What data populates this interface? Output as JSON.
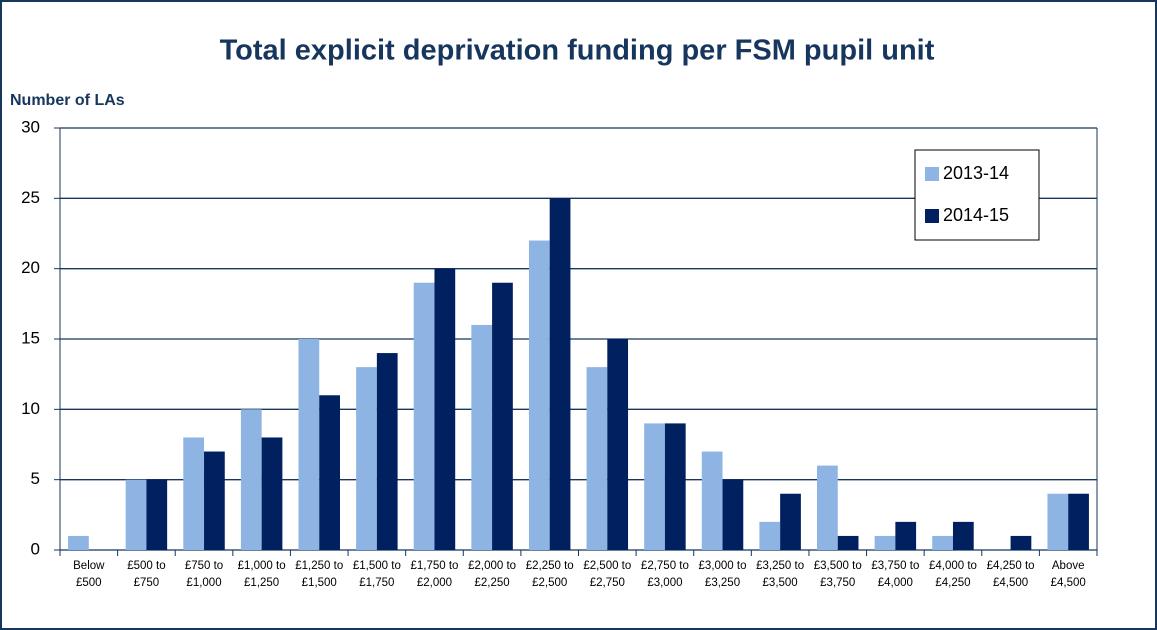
{
  "chart_data": {
    "type": "bar",
    "title": "Total explicit deprivation funding per FSM pupil unit",
    "y_label": "Number of LAs",
    "categories": [
      "Below £500",
      "£500 to £750",
      "£750 to £1,000",
      "£1,000 to £1,250",
      "£1,250 to £1,500",
      "£1,500 to £1,750",
      "£1,750 to £2,000",
      "£2,000 to £2,250",
      "£2,250 to £2,500",
      "£2,500 to £2,750",
      "£2,750 to £3,000",
      "£3,000 to £3,250",
      "£3,250 to £3,500",
      "£3,500 to £3,750",
      "£3,750 to £4,000",
      "£4,000 to £4,250",
      "£4,250 to £4,500",
      "Above £4,500"
    ],
    "series": [
      {
        "name": "2013-14",
        "color": "#8eb4e3",
        "values": [
          1,
          5,
          8,
          10,
          15,
          13,
          19,
          16,
          22,
          13,
          9,
          7,
          2,
          6,
          1,
          1,
          0,
          4
        ]
      },
      {
        "name": "2014-15",
        "color": "#002060",
        "values": [
          0,
          5,
          7,
          8,
          11,
          14,
          20,
          19,
          25,
          15,
          9,
          5,
          4,
          1,
          2,
          2,
          1,
          4
        ]
      }
    ],
    "ylim": [
      0,
      30
    ],
    "yticks": [
      0,
      5,
      10,
      15,
      20,
      25,
      30
    ],
    "grid": true,
    "legend": "upper right"
  }
}
